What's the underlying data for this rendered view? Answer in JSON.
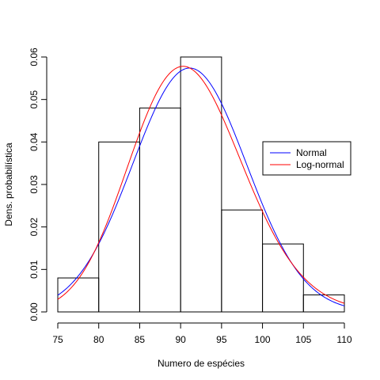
{
  "chart_data": {
    "type": "bar",
    "title": "",
    "xlabel": "Numero de espécies",
    "ylabel": "Dens. probabilística",
    "xlim": [
      75,
      110
    ],
    "ylim": [
      0,
      0.06
    ],
    "x_ticks": [
      "75",
      "80",
      "85",
      "90",
      "95",
      "100",
      "105",
      "110"
    ],
    "y_ticks": [
      "0.00",
      "0.01",
      "0.02",
      "0.03",
      "0.04",
      "0.05",
      "0.06"
    ],
    "histogram": {
      "bins": [
        [
          75,
          80
        ],
        [
          80,
          85
        ],
        [
          85,
          90
        ],
        [
          90,
          95
        ],
        [
          95,
          100
        ],
        [
          100,
          105
        ],
        [
          105,
          110
        ]
      ],
      "values": [
        0.008,
        0.04,
        0.048,
        0.06,
        0.024,
        0.016,
        0.004
      ]
    },
    "series": [
      {
        "name": "Normal",
        "color": "#0000ff",
        "distribution": "normal",
        "mean": 91.1,
        "sd": 6.95
      },
      {
        "name": "Log-normal",
        "color": "#ff0000",
        "distribution": "log-normal",
        "meanlog": 4.509,
        "sdlog": 0.0762
      }
    ],
    "legend": {
      "position": "right",
      "entries": [
        {
          "label": "Normal",
          "color": "#0000ff"
        },
        {
          "label": "Log-normal",
          "color": "#ff0000"
        }
      ]
    },
    "grid": false
  }
}
